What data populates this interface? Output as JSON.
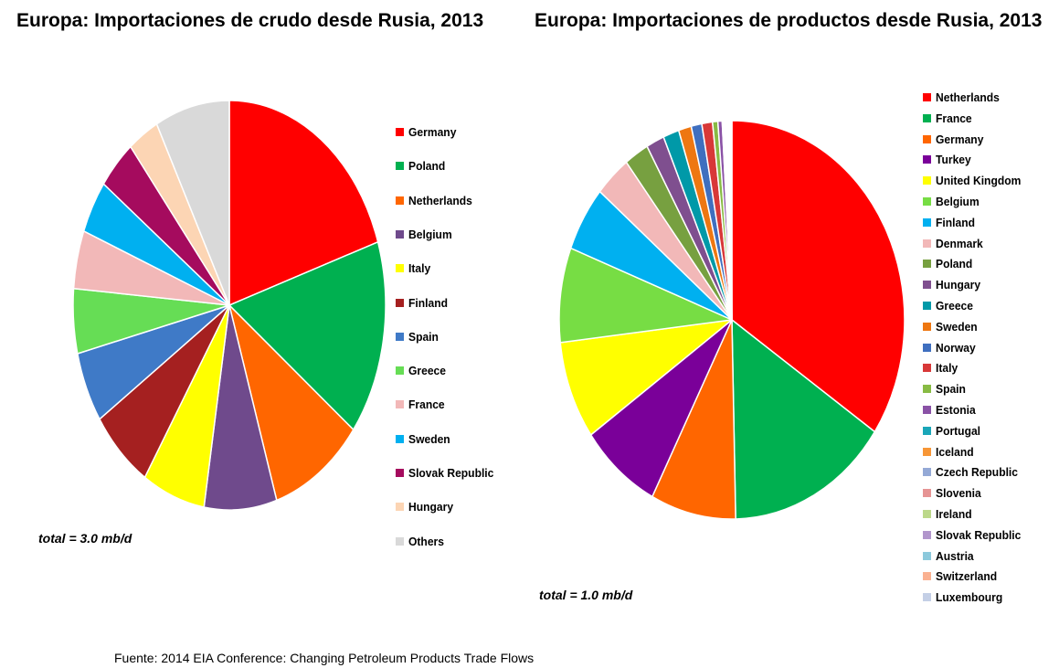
{
  "chart_data": [
    {
      "type": "pie",
      "title": "Europa: Importaciones de crudo desde Rusia, 2013",
      "total_label": "total = 3.0 mb/d",
      "legend_position": "right",
      "slices": [
        {
          "name": "Germany",
          "value": 20.0,
          "color": "#ff0000"
        },
        {
          "name": "Poland",
          "value": 15.4,
          "color": "#00b050"
        },
        {
          "name": "Netherlands",
          "value": 9.7,
          "color": "#ff6600"
        },
        {
          "name": "Belgium",
          "value": 7.5,
          "color": "#6f4a8c"
        },
        {
          "name": "Italy",
          "value": 6.5,
          "color": "#ffff00"
        },
        {
          "name": "Finland",
          "value": 6.5,
          "color": "#a52020"
        },
        {
          "name": "Spain",
          "value": 5.6,
          "color": "#3f7ac7"
        },
        {
          "name": "Greece",
          "value": 5.1,
          "color": "#66dd55"
        },
        {
          "name": "France",
          "value": 4.6,
          "color": "#f2b8b8"
        },
        {
          "name": "Sweden",
          "value": 4.2,
          "color": "#00b0f0"
        },
        {
          "name": "Slovak Republic",
          "value": 4.0,
          "color": "#a50b5e"
        },
        {
          "name": "Hungary",
          "value": 3.2,
          "color": "#fcd5b4"
        },
        {
          "name": "Others",
          "value": 7.7,
          "color": "#d9d9d9"
        }
      ]
    },
    {
      "type": "pie",
      "title": "Europa: Importaciones de productos desde Rusia, 2013",
      "total_label": "total = 1.0 mb/d",
      "legend_position": "right",
      "slices": [
        {
          "name": "Netherlands",
          "value": 34.6,
          "color": "#ff0000"
        },
        {
          "name": "France",
          "value": 15.2,
          "color": "#00b050"
        },
        {
          "name": "Germany",
          "value": 8.0,
          "color": "#ff6600"
        },
        {
          "name": "Turkey",
          "value": 7.6,
          "color": "#7a0099"
        },
        {
          "name": "United Kingdom",
          "value": 8.0,
          "color": "#ffff00"
        },
        {
          "name": "Belgium",
          "value": 7.7,
          "color": "#77dd44"
        },
        {
          "name": "Finland",
          "value": 5.3,
          "color": "#00b0f0"
        },
        {
          "name": "Denmark",
          "value": 3.4,
          "color": "#f2b8b8"
        },
        {
          "name": "Poland",
          "value": 2.3,
          "color": "#77a040"
        },
        {
          "name": "Hungary",
          "value": 1.7,
          "color": "#7f4f8f"
        },
        {
          "name": "Greece",
          "value": 1.5,
          "color": "#0099a8"
        },
        {
          "name": "Sweden",
          "value": 1.2,
          "color": "#ee7711"
        },
        {
          "name": "Norway",
          "value": 1.0,
          "color": "#3f6fbf"
        },
        {
          "name": "Italy",
          "value": 1.0,
          "color": "#d83838"
        },
        {
          "name": "Spain",
          "value": 0.5,
          "color": "#88bb44"
        },
        {
          "name": "Estonia",
          "value": 0.4,
          "color": "#8a52a6"
        },
        {
          "name": "Portugal",
          "value": 0.1,
          "color": "#1aa6b8"
        },
        {
          "name": "Iceland",
          "value": 0.1,
          "color": "#f79636"
        },
        {
          "name": "Czech Republic",
          "value": 0.1,
          "color": "#94a9d6"
        },
        {
          "name": "Slovenia",
          "value": 0.1,
          "color": "#e69494"
        },
        {
          "name": "Ireland",
          "value": 0.1,
          "color": "#bcd88a"
        },
        {
          "name": "Slovak Republic",
          "value": 0.1,
          "color": "#b196cc"
        },
        {
          "name": "Austria",
          "value": 0.1,
          "color": "#8cc9dc"
        },
        {
          "name": "Switzerland",
          "value": 0.1,
          "color": "#fab191"
        },
        {
          "name": "Luxembourg",
          "value": 0.1,
          "color": "#c4cfe6"
        }
      ]
    }
  ],
  "source": "Fuente: 2014 EIA Conference: Changing Petroleum Products Trade Flows"
}
